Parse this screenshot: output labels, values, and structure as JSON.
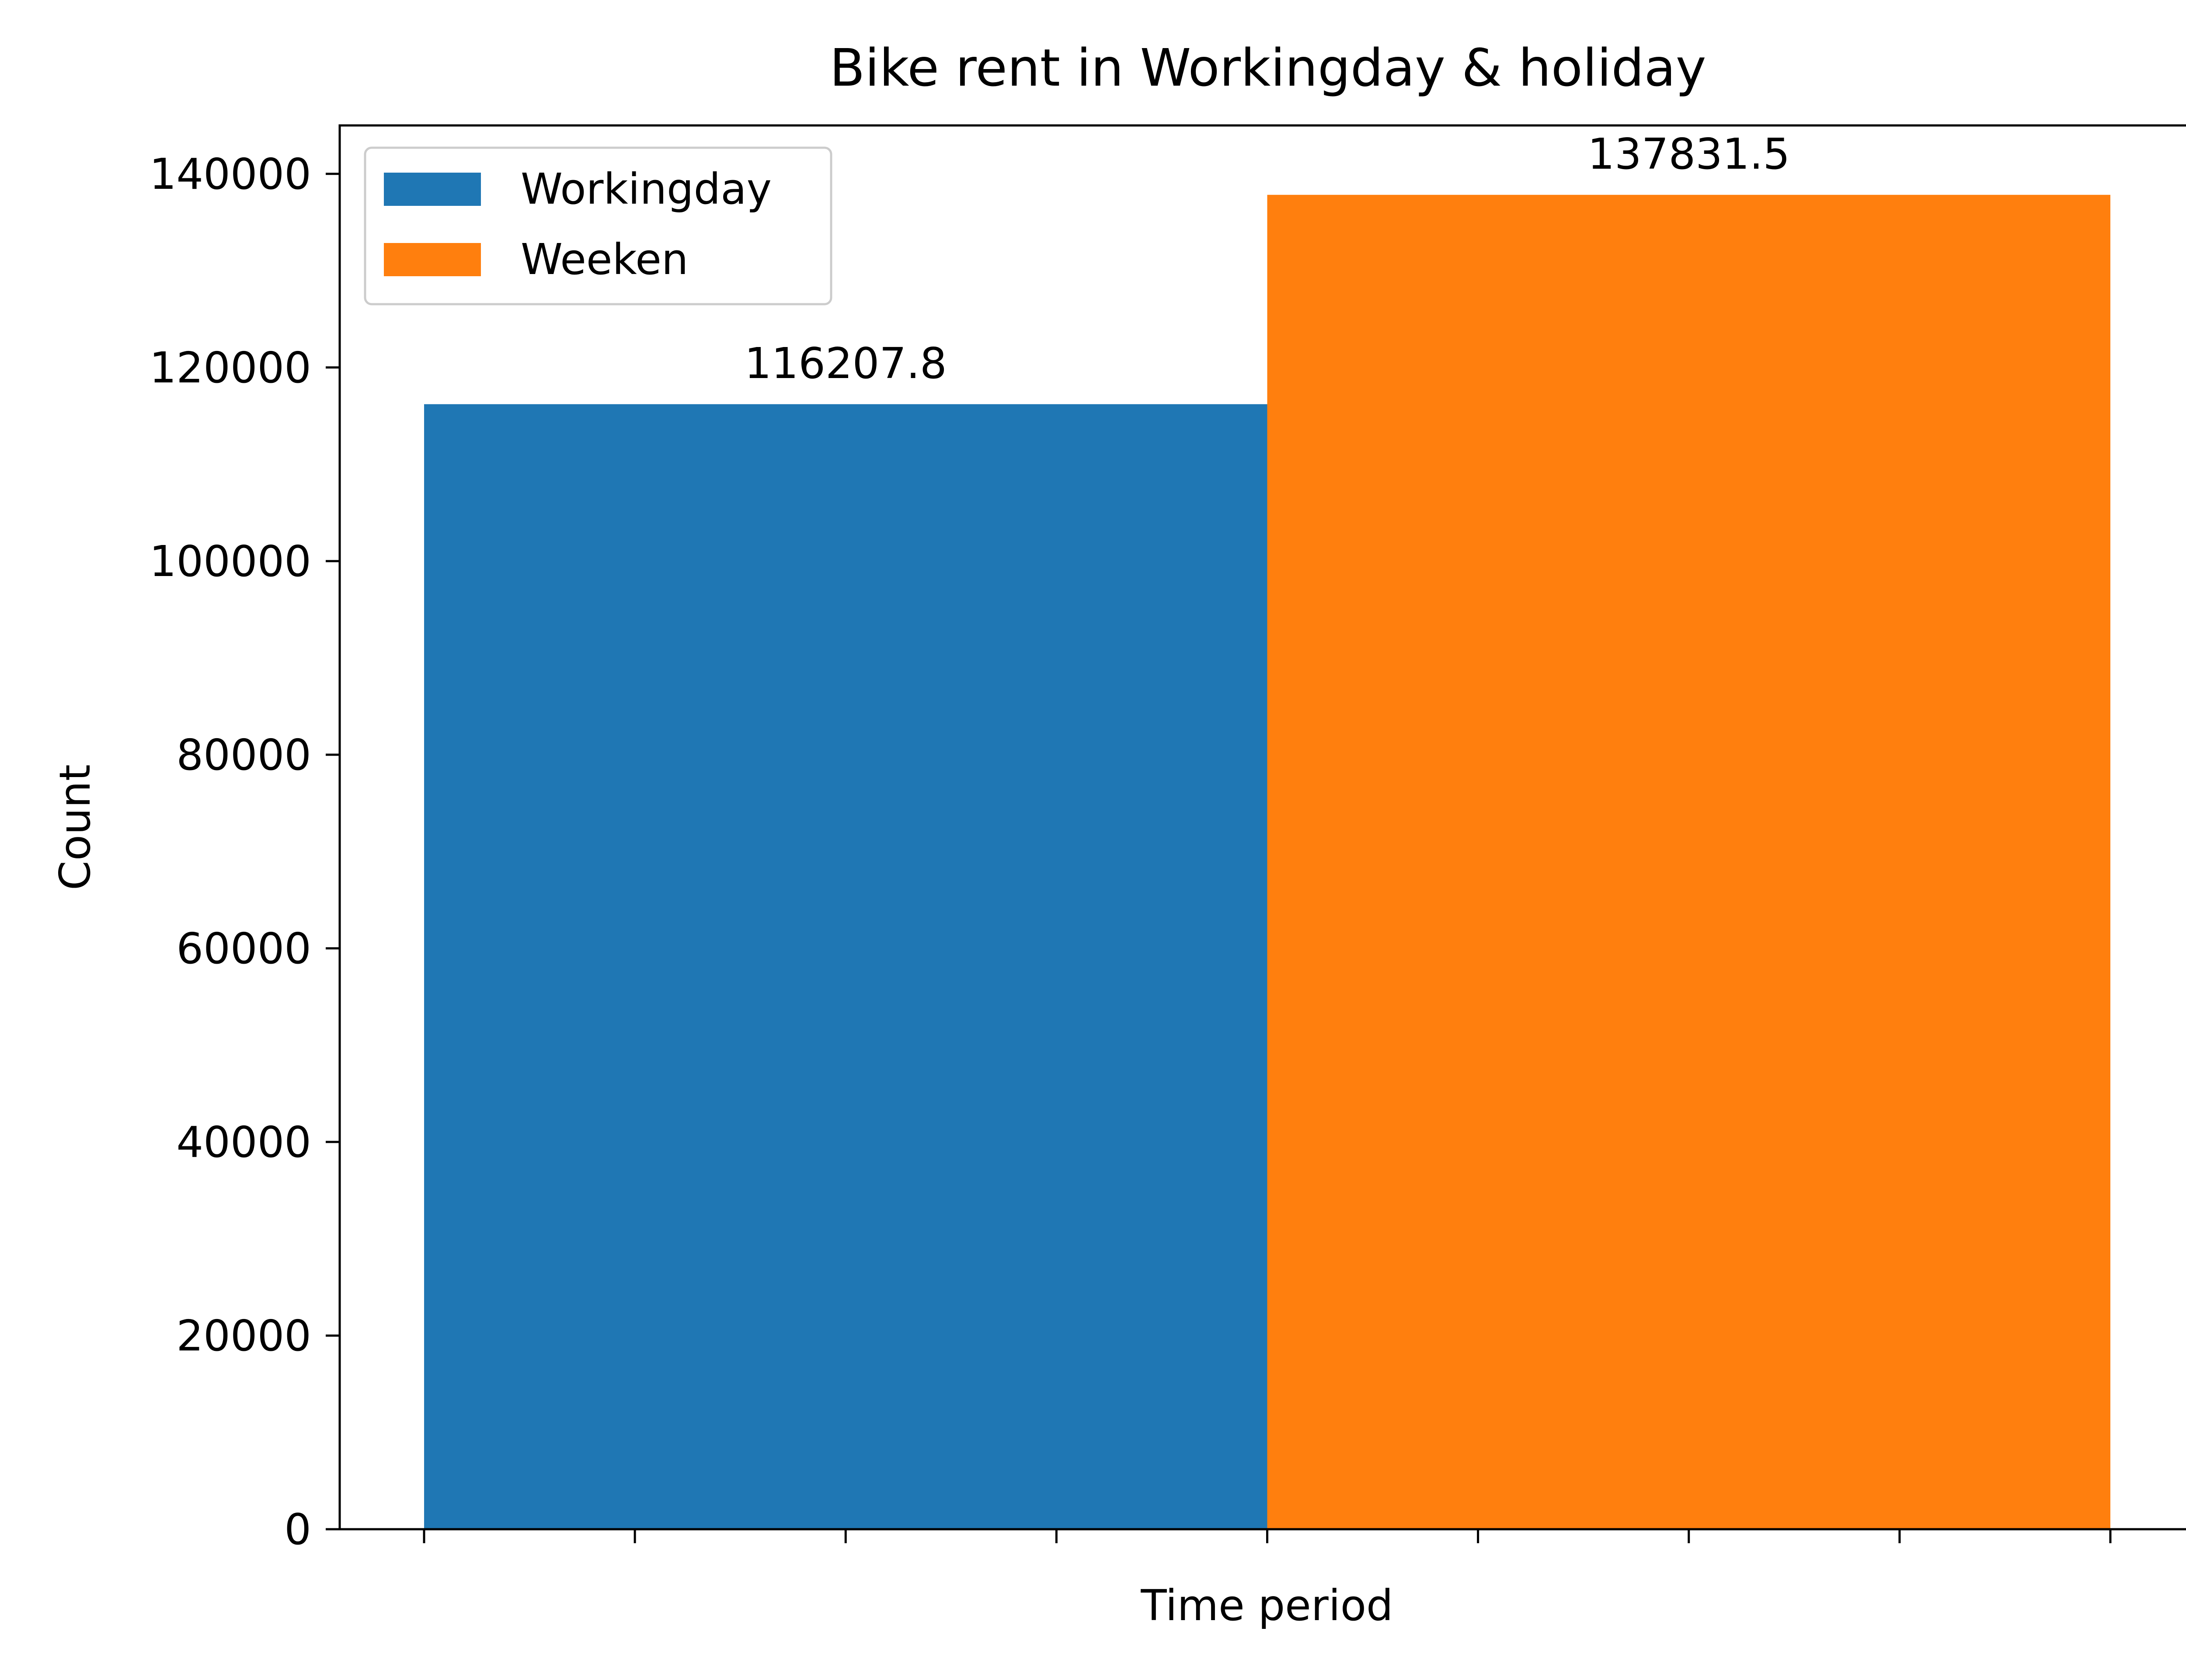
{
  "chart_data": {
    "type": "bar",
    "title": "Bike rent in Workingday & holiday",
    "xlabel": "Time period",
    "ylabel": "Count",
    "ylim": [
      0,
      145000
    ],
    "yticks": [
      0,
      20000,
      40000,
      60000,
      80000,
      100000,
      120000,
      140000
    ],
    "ytick_labels": [
      "0",
      "20000",
      "40000",
      "60000",
      "80000",
      "100000",
      "120000",
      "140000"
    ],
    "xticks_minor_count": 9,
    "grid": false,
    "legend_position": "top-left",
    "series": [
      {
        "name": "Workingday",
        "value": 116207.8,
        "value_label": "116207.8",
        "color": "#1f77b4"
      },
      {
        "name": "Weeken",
        "value": 137831.5,
        "value_label": "137831.5",
        "color": "#ff7f0e"
      }
    ]
  }
}
